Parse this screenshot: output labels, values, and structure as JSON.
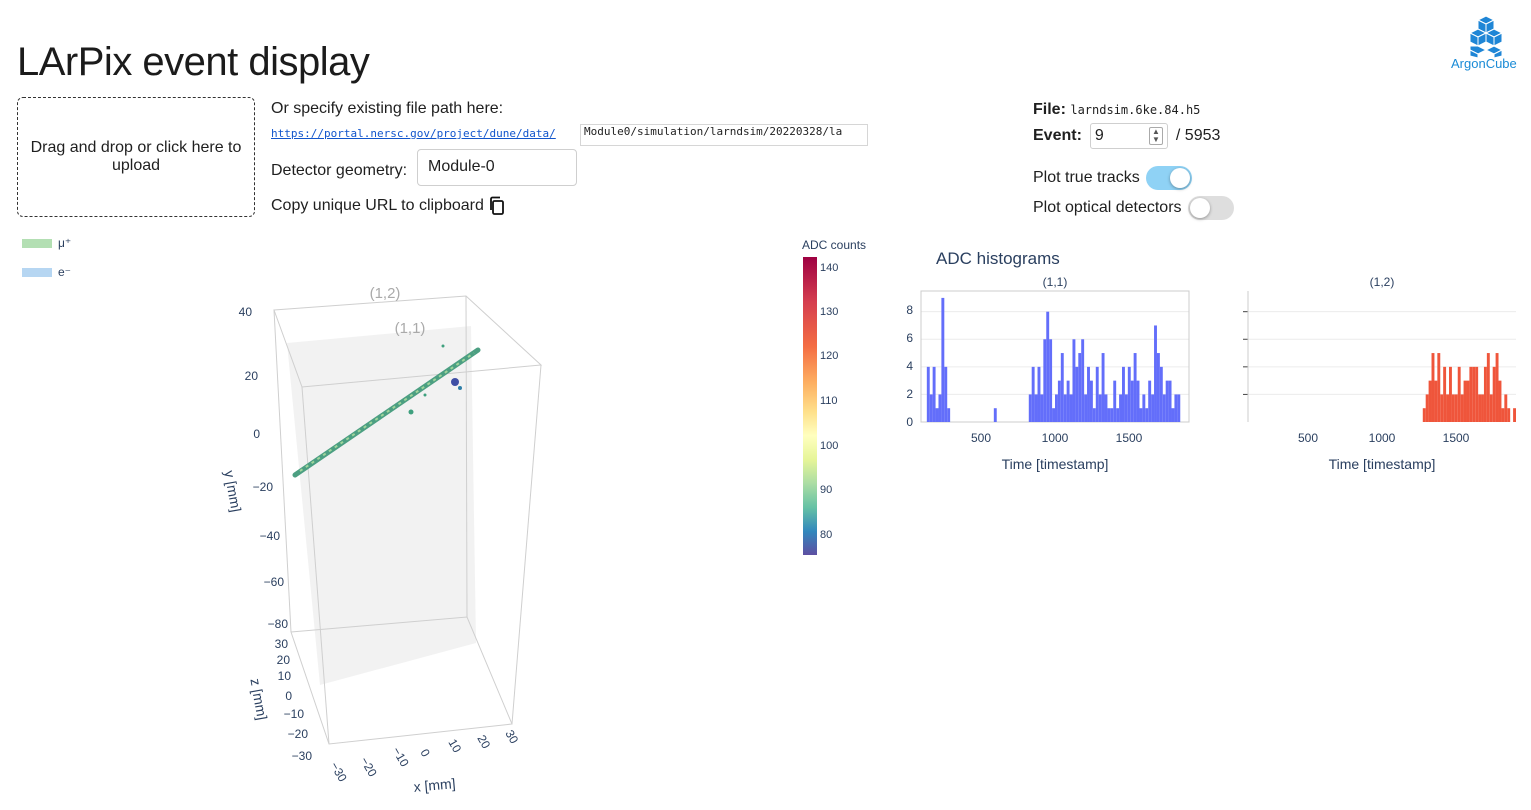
{
  "header": {
    "title": "LArPix event display",
    "logo_text": "ArgonCube"
  },
  "upload": {
    "label": "Drag and drop or click here to upload"
  },
  "file_path": {
    "label": "Or specify existing file path here:",
    "prefix": "https://portal.nersc.gov/project/dune/data/",
    "value": "Module0/simulation/larndsim/20220328/la"
  },
  "geometry": {
    "label": "Detector geometry:",
    "value": "Module-0"
  },
  "copy_url": {
    "label": "Copy unique URL to clipboard"
  },
  "file_info": {
    "file_label": "File:",
    "file_name": "larndsim.6ke.84.h5",
    "event_label": "Event:",
    "event_value": "9",
    "event_total": "/ 5953"
  },
  "toggles": [
    {
      "label": "Plot true tracks",
      "on": true
    },
    {
      "label": "Plot optical detectors",
      "on": false
    }
  ],
  "legend": [
    {
      "label": "μ⁺",
      "color": "#a8d8a8"
    },
    {
      "label": "e⁻",
      "color": "#a9cfee"
    }
  ],
  "colorbar": {
    "title": "ADC counts",
    "ticks": [
      "140",
      "130",
      "120",
      "110",
      "100",
      "90",
      "80"
    ]
  },
  "scene3d": {
    "labels": {
      "y": "y [mm]",
      "z": "z [mm]",
      "x": "x [mm]"
    },
    "y_ticks": [
      "40",
      "20",
      "0",
      "−20",
      "−40",
      "−60",
      "−80"
    ],
    "z_ticks": [
      "30",
      "20",
      "10",
      "0",
      "−10",
      "−20",
      "−30"
    ],
    "x_ticks": [
      "−30",
      "−20",
      "−10",
      "0",
      "10",
      "20",
      "30"
    ],
    "tpc_labels": [
      "(1,2)",
      "(1,1)"
    ]
  },
  "histograms": {
    "title": "ADC histograms",
    "xlabel": "Time [timestamp]",
    "x_ticks": [
      "500",
      "1000",
      "1500"
    ],
    "y_ticks": [
      "8",
      "6",
      "4",
      "2",
      "0"
    ]
  },
  "chart_data": [
    {
      "type": "bar",
      "title": "(1,1)",
      "xlabel": "Time [timestamp]",
      "xlim": [
        60,
        1900
      ],
      "ylim": [
        0,
        9.5
      ],
      "bin_width": 20,
      "color": "#636efa",
      "bins": [
        [
          100,
          4
        ],
        [
          120,
          2
        ],
        [
          140,
          4
        ],
        [
          160,
          1
        ],
        [
          180,
          2
        ],
        [
          200,
          9
        ],
        [
          220,
          4
        ],
        [
          240,
          1
        ],
        [
          560,
          1
        ],
        [
          800,
          2
        ],
        [
          820,
          4
        ],
        [
          840,
          2
        ],
        [
          860,
          4
        ],
        [
          880,
          2
        ],
        [
          900,
          6
        ],
        [
          920,
          8
        ],
        [
          940,
          6
        ],
        [
          960,
          1
        ],
        [
          980,
          2
        ],
        [
          1000,
          3
        ],
        [
          1020,
          5
        ],
        [
          1040,
          2
        ],
        [
          1060,
          3
        ],
        [
          1080,
          2
        ],
        [
          1100,
          6
        ],
        [
          1120,
          4
        ],
        [
          1140,
          5
        ],
        [
          1160,
          6
        ],
        [
          1180,
          2
        ],
        [
          1200,
          4
        ],
        [
          1220,
          3
        ],
        [
          1240,
          1
        ],
        [
          1260,
          4
        ],
        [
          1280,
          2
        ],
        [
          1300,
          5
        ],
        [
          1320,
          2
        ],
        [
          1340,
          1
        ],
        [
          1360,
          1
        ],
        [
          1380,
          3
        ],
        [
          1400,
          1
        ],
        [
          1420,
          2
        ],
        [
          1440,
          4
        ],
        [
          1460,
          2
        ],
        [
          1480,
          4
        ],
        [
          1500,
          3
        ],
        [
          1520,
          5
        ],
        [
          1540,
          3
        ],
        [
          1560,
          1
        ],
        [
          1580,
          2
        ],
        [
          1600,
          1
        ],
        [
          1620,
          3
        ],
        [
          1640,
          2
        ],
        [
          1660,
          7
        ],
        [
          1680,
          5
        ],
        [
          1700,
          4
        ],
        [
          1720,
          2
        ],
        [
          1740,
          3
        ],
        [
          1760,
          3
        ],
        [
          1780,
          1
        ],
        [
          1800,
          2
        ],
        [
          1820,
          2
        ]
      ]
    },
    {
      "type": "bar",
      "title": "(1,2)",
      "xlabel": "Time [timestamp]",
      "xlim": [
        60,
        1900
      ],
      "ylim": [
        0,
        9.5
      ],
      "bin_width": 20,
      "color": "#ef553b",
      "bins": [
        [
          1260,
          1
        ],
        [
          1280,
          2
        ],
        [
          1300,
          3
        ],
        [
          1320,
          5
        ],
        [
          1340,
          3
        ],
        [
          1360,
          5
        ],
        [
          1380,
          2
        ],
        [
          1400,
          4
        ],
        [
          1420,
          2
        ],
        [
          1440,
          4
        ],
        [
          1460,
          2
        ],
        [
          1480,
          2
        ],
        [
          1500,
          4
        ],
        [
          1520,
          2
        ],
        [
          1540,
          3
        ],
        [
          1560,
          3
        ],
        [
          1580,
          4
        ],
        [
          1600,
          4
        ],
        [
          1620,
          4
        ],
        [
          1640,
          2
        ],
        [
          1660,
          2
        ],
        [
          1680,
          4
        ],
        [
          1700,
          5
        ],
        [
          1720,
          2
        ],
        [
          1740,
          4
        ],
        [
          1760,
          5
        ],
        [
          1780,
          3
        ],
        [
          1800,
          1
        ],
        [
          1820,
          2
        ],
        [
          1840,
          1
        ],
        [
          1860,
          0
        ],
        [
          1880,
          1
        ]
      ]
    }
  ]
}
